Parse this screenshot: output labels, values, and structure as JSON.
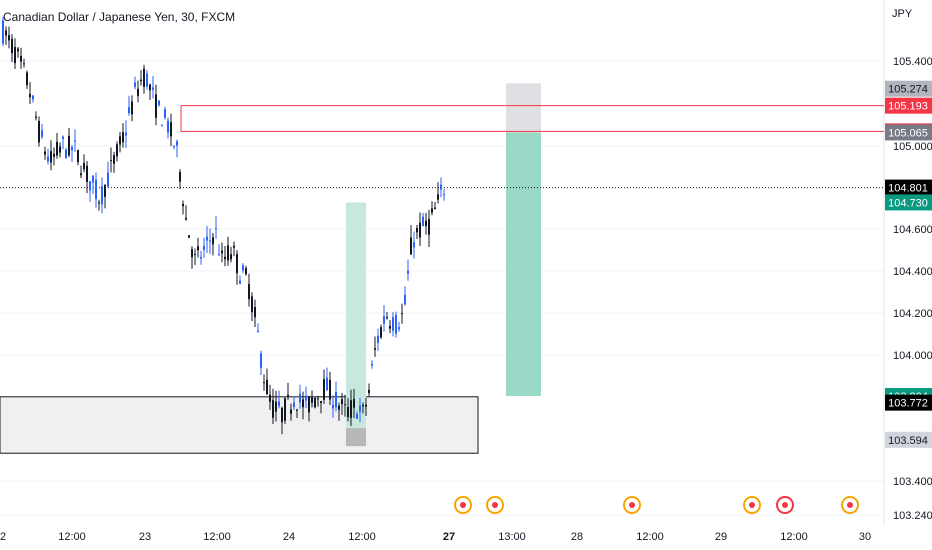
{
  "chart_data": {
    "type": "candlestick",
    "title": "Canadian Dollar / Japanese Yen, 30, FXCM",
    "currency": "JPY",
    "y_ticks": [
      "105.400",
      "105.000",
      "104.600",
      "104.400",
      "104.200",
      "104.000",
      "103.400",
      "103.240"
    ],
    "x_ticks": [
      "2",
      "12:00",
      "23",
      "12:00",
      "24",
      "12:00",
      "27",
      "13:00",
      "28",
      "12:00",
      "29",
      "12:00",
      "30"
    ],
    "ylim": [
      103.24,
      105.5
    ],
    "price_tags": [
      {
        "label": "105.274",
        "value": 105.274,
        "bg": "#b2b5be",
        "fg": "#131722"
      },
      {
        "label": "105.193",
        "value": 105.193,
        "bg": "#f23645",
        "fg": "#ffffff"
      },
      {
        "label": "105.070",
        "value": 105.07,
        "bg": "#f23645",
        "fg": "#ffffff"
      },
      {
        "label": "105.065",
        "value": 105.065,
        "bg": "#787b86",
        "fg": "#ffffff"
      },
      {
        "label": "104.801",
        "value": 104.801,
        "bg": "#000000",
        "fg": "#ffffff"
      },
      {
        "label": "104.730",
        "value": 104.73,
        "bg": "#089981",
        "fg": "#ffffff"
      },
      {
        "label": "103.804",
        "value": 103.804,
        "bg": "#089981",
        "fg": "#ffffff"
      },
      {
        "label": "103.772",
        "value": 103.772,
        "bg": "#000000",
        "fg": "#ffffff"
      },
      {
        "label": "103.594",
        "value": 103.594,
        "bg": "#d1d4dc",
        "fg": "#131722"
      }
    ],
    "horizontal_levels": [
      105.193,
      105.07
    ],
    "current_price": 104.801,
    "demand_zone": {
      "top": 103.8,
      "bottom": 103.53
    },
    "long_position_1": {
      "entry": 103.65,
      "target": 104.73
    },
    "long_position_2": {
      "stop_top": 105.3,
      "entry": 105.065,
      "target": 103.804
    },
    "colors": {
      "up": "#2962ff",
      "down": "#131722",
      "level": "#f23645",
      "grid": "#f0f3fa",
      "profit": "#089981",
      "loss": "#787b86"
    }
  }
}
